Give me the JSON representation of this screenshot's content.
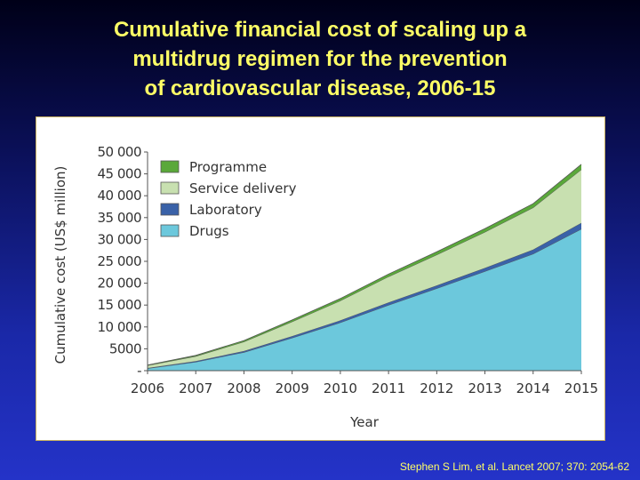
{
  "slide": {
    "title_lines": [
      "Cumulative financial cost of scaling up a",
      "multidrug regimen for the prevention",
      "of cardiovascular disease, 2006-15"
    ],
    "citation": "Stephen S Lim, et al. Lancet 2007; 370: 2054-62"
  },
  "colors": {
    "title": "#ffff66",
    "background_top": "#000018",
    "background_bottom": "#2433c8"
  },
  "chart_data": {
    "type": "area",
    "stacked": true,
    "xlabel": "Year",
    "ylabel": "Cumulative cost (US$ million)",
    "x": [
      2006,
      2007,
      2008,
      2009,
      2010,
      2011,
      2012,
      2013,
      2014,
      2015
    ],
    "ylim": [
      0,
      50000
    ],
    "yticks": [
      0,
      5000,
      10000,
      15000,
      20000,
      25000,
      30000,
      35000,
      40000,
      45000,
      50000
    ],
    "ytick_labels": [
      "-",
      "5000",
      "10 000",
      "15 000",
      "20 000",
      "25 000",
      "30 000",
      "35 000",
      "40 000",
      "45 000",
      "50 000"
    ],
    "legend_position": "top-left",
    "series": [
      {
        "name": "Drugs",
        "color": "#6cc8dc",
        "values": [
          500,
          2000,
          4200,
          7500,
          11000,
          15000,
          18800,
          22700,
          26700,
          32400
        ]
      },
      {
        "name": "Laboratory",
        "color": "#3a62a8",
        "values": [
          100,
          200,
          300,
          400,
          500,
          600,
          700,
          800,
          1000,
          1400
        ]
      },
      {
        "name": "Service delivery",
        "color": "#c8e0b0",
        "values": [
          600,
          1100,
          2100,
          3300,
          4500,
          5900,
          7000,
          8200,
          9600,
          12200
        ]
      },
      {
        "name": "Programme",
        "color": "#5aa83a",
        "values": [
          100,
          200,
          300,
          400,
          500,
          600,
          700,
          800,
          900,
          1200
        ]
      }
    ]
  }
}
